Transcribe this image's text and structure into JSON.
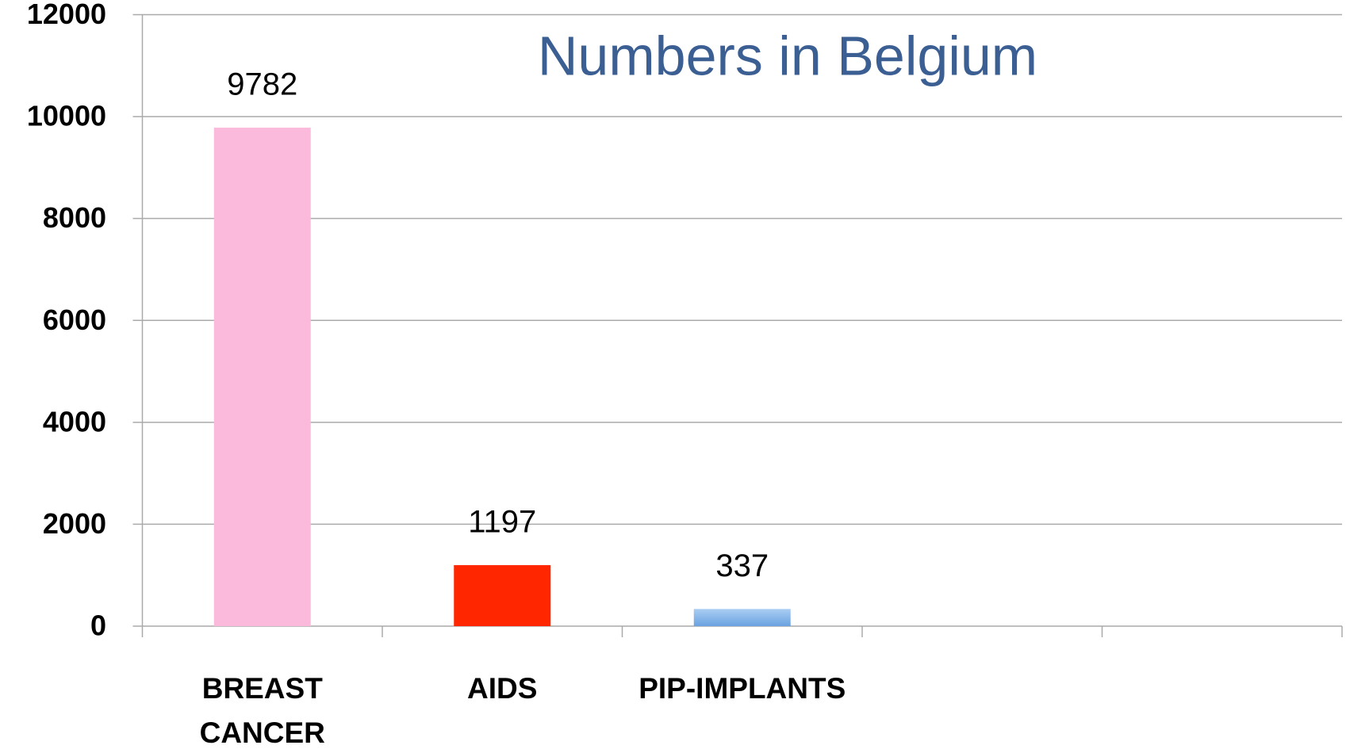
{
  "chart_data": {
    "type": "bar",
    "title": "Numbers in Belgium",
    "categories": [
      "BREAST CANCER",
      "AIDS",
      "PIP-IMPLANTS",
      null,
      null
    ],
    "values": [
      9782,
      1197,
      337,
      null,
      null
    ],
    "colors": [
      "#fbb9dc",
      "#ff2600",
      "#80b3ea",
      null,
      null
    ],
    "ylim": [
      0,
      12000
    ],
    "yticks": [
      0,
      2000,
      4000,
      6000,
      8000,
      10000,
      12000
    ],
    "grid": true
  }
}
